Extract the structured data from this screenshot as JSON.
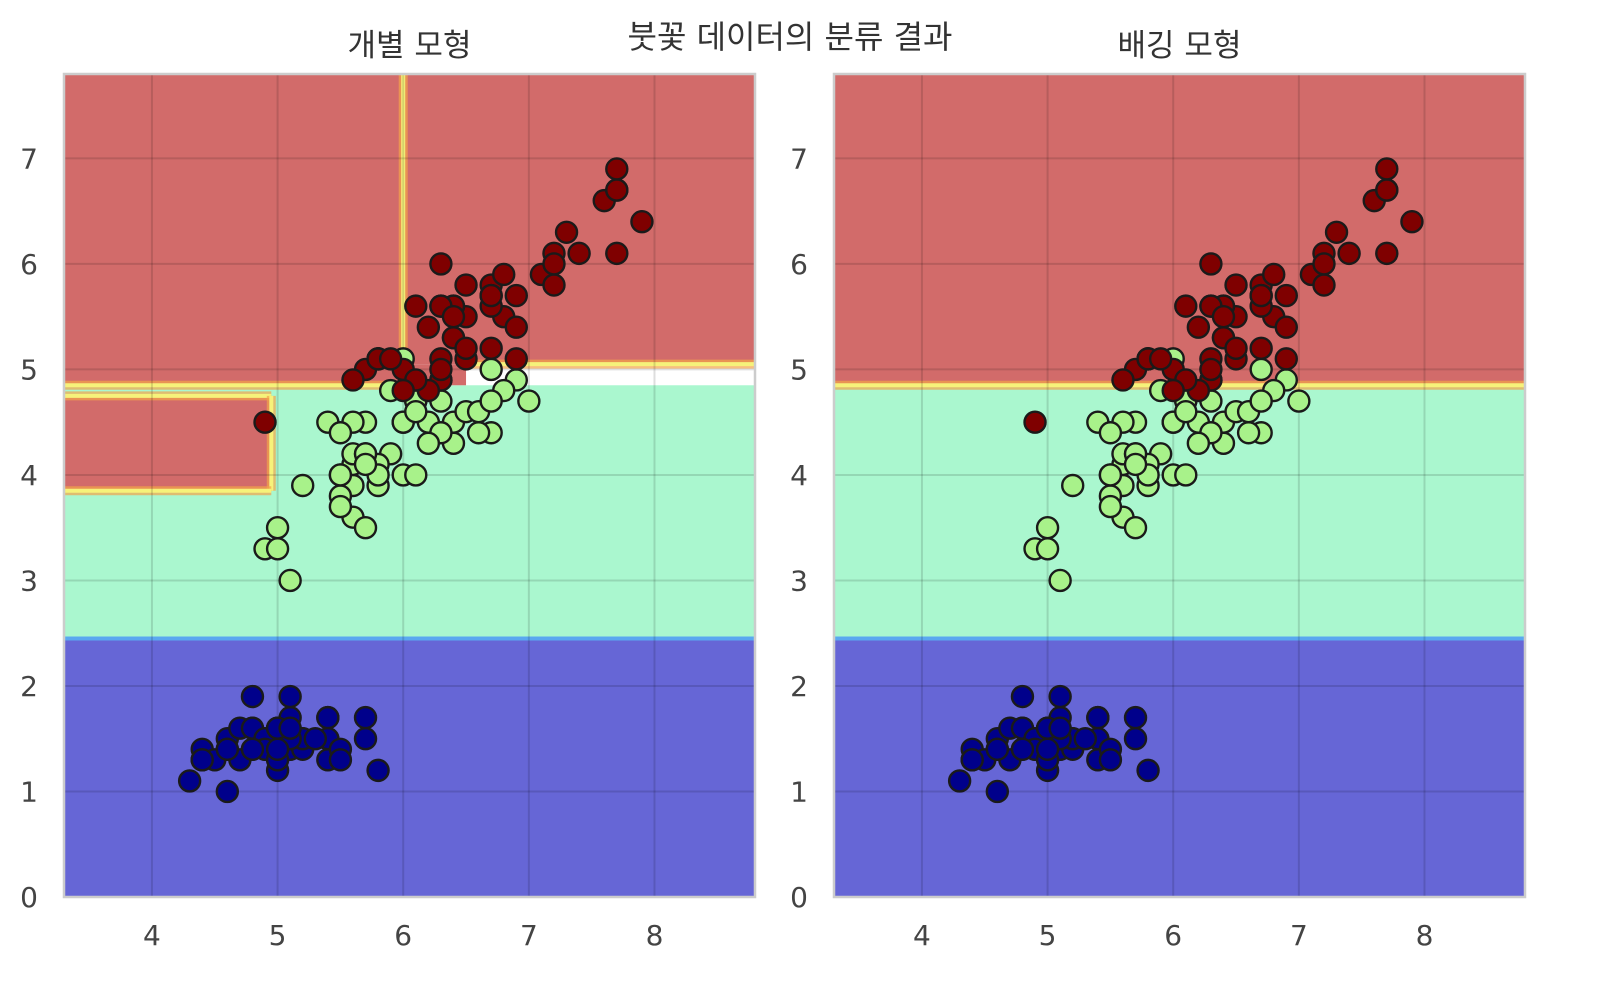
{
  "figure": {
    "suptitle": "붓꽃 데이터의 분류 결과"
  },
  "chart_data": [
    {
      "type": "scatter",
      "title": "개별 모형",
      "xlim": [
        3.3,
        8.8
      ],
      "ylim": [
        0,
        7.8
      ],
      "xticks": [
        4,
        5,
        6,
        7,
        8
      ],
      "yticks": [
        0,
        1,
        2,
        3,
        4,
        5,
        6,
        7
      ],
      "grid": true,
      "class_colors": {
        "0": "#00008b",
        "1": "#a8f28a",
        "2": "#7f0000"
      },
      "region_colors": {
        "0": "#6666d6",
        "1": "#aaf7cf",
        "2": "#d26b6a"
      },
      "decision_regions": [
        {
          "class": 0,
          "x": [
            3.3,
            8.8
          ],
          "y": [
            0,
            2.45
          ]
        },
        {
          "class": 1,
          "x": [
            3.3,
            8.8
          ],
          "y": [
            2.45,
            4.85
          ]
        },
        {
          "class": 2,
          "x": [
            3.3,
            4.95
          ],
          "y": [
            3.85,
            4.75
          ]
        },
        {
          "class": 2,
          "x": [
            3.3,
            6.0
          ],
          "y": [
            4.85,
            7.8
          ]
        },
        {
          "class": 2,
          "x": [
            6.0,
            8.8
          ],
          "y": [
            5.05,
            7.8
          ]
        },
        {
          "class": 2,
          "x": [
            6.0,
            6.5
          ],
          "y": [
            4.85,
            5.05
          ]
        }
      ]
    },
    {
      "type": "scatter",
      "title": "배깅 모형",
      "xlim": [
        3.3,
        8.8
      ],
      "ylim": [
        0,
        7.8
      ],
      "xticks": [
        4,
        5,
        6,
        7,
        8
      ],
      "yticks": [
        0,
        1,
        2,
        3,
        4,
        5,
        6,
        7
      ],
      "grid": true,
      "class_colors": {
        "0": "#00008b",
        "1": "#a8f28a",
        "2": "#7f0000"
      },
      "region_colors": {
        "0": "#6666d6",
        "1": "#aaf7cf",
        "2": "#d26b6a"
      },
      "decision_regions": [
        {
          "class": 0,
          "x": [
            3.3,
            8.8
          ],
          "y": [
            0,
            2.45
          ]
        },
        {
          "class": 1,
          "x": [
            3.3,
            8.8
          ],
          "y": [
            2.45,
            4.85
          ]
        },
        {
          "class": 2,
          "x": [
            3.3,
            8.8
          ],
          "y": [
            4.85,
            7.8
          ]
        }
      ]
    }
  ],
  "points": [
    [
      5.1,
      1.4,
      0
    ],
    [
      4.9,
      1.4,
      0
    ],
    [
      4.7,
      1.3,
      0
    ],
    [
      4.6,
      1.5,
      0
    ],
    [
      5.0,
      1.4,
      0
    ],
    [
      5.4,
      1.7,
      0
    ],
    [
      4.6,
      1.4,
      0
    ],
    [
      5.0,
      1.5,
      0
    ],
    [
      4.4,
      1.4,
      0
    ],
    [
      4.9,
      1.5,
      0
    ],
    [
      5.4,
      1.5,
      0
    ],
    [
      4.8,
      1.6,
      0
    ],
    [
      4.8,
      1.4,
      0
    ],
    [
      4.3,
      1.1,
      0
    ],
    [
      5.8,
      1.2,
      0
    ],
    [
      5.7,
      1.5,
      0
    ],
    [
      5.4,
      1.3,
      0
    ],
    [
      5.1,
      1.4,
      0
    ],
    [
      5.7,
      1.7,
      0
    ],
    [
      5.1,
      1.5,
      0
    ],
    [
      5.4,
      1.7,
      0
    ],
    [
      5.1,
      1.5,
      0
    ],
    [
      4.6,
      1.0,
      0
    ],
    [
      5.1,
      1.7,
      0
    ],
    [
      4.8,
      1.9,
      0
    ],
    [
      5.0,
      1.6,
      0
    ],
    [
      5.0,
      1.6,
      0
    ],
    [
      5.2,
      1.5,
      0
    ],
    [
      5.2,
      1.4,
      0
    ],
    [
      4.7,
      1.6,
      0
    ],
    [
      4.8,
      1.6,
      0
    ],
    [
      5.4,
      1.5,
      0
    ],
    [
      5.2,
      1.5,
      0
    ],
    [
      5.5,
      1.4,
      0
    ],
    [
      4.9,
      1.5,
      0
    ],
    [
      5.0,
      1.2,
      0
    ],
    [
      5.5,
      1.3,
      0
    ],
    [
      4.9,
      1.4,
      0
    ],
    [
      4.4,
      1.3,
      0
    ],
    [
      5.1,
      1.5,
      0
    ],
    [
      5.0,
      1.3,
      0
    ],
    [
      4.5,
      1.3,
      0
    ],
    [
      4.4,
      1.3,
      0
    ],
    [
      5.0,
      1.6,
      0
    ],
    [
      5.1,
      1.9,
      0
    ],
    [
      4.8,
      1.4,
      0
    ],
    [
      5.1,
      1.6,
      0
    ],
    [
      4.6,
      1.4,
      0
    ],
    [
      5.3,
      1.5,
      0
    ],
    [
      5.0,
      1.4,
      0
    ],
    [
      7.0,
      4.7,
      1
    ],
    [
      6.4,
      4.5,
      1
    ],
    [
      6.9,
      4.9,
      1
    ],
    [
      5.5,
      4.0,
      1
    ],
    [
      6.5,
      4.6,
      1
    ],
    [
      5.7,
      4.5,
      1
    ],
    [
      6.3,
      4.7,
      1
    ],
    [
      4.9,
      3.3,
      1
    ],
    [
      6.6,
      4.6,
      1
    ],
    [
      5.2,
      3.9,
      1
    ],
    [
      5.0,
      3.5,
      1
    ],
    [
      5.9,
      4.2,
      1
    ],
    [
      6.0,
      4.0,
      1
    ],
    [
      6.1,
      4.7,
      1
    ],
    [
      5.6,
      3.6,
      1
    ],
    [
      6.7,
      4.4,
      1
    ],
    [
      5.6,
      4.5,
      1
    ],
    [
      5.8,
      4.1,
      1
    ],
    [
      6.2,
      4.5,
      1
    ],
    [
      5.6,
      3.9,
      1
    ],
    [
      5.9,
      4.8,
      1
    ],
    [
      6.1,
      4.0,
      1
    ],
    [
      6.3,
      4.9,
      1
    ],
    [
      6.1,
      4.7,
      1
    ],
    [
      6.4,
      4.3,
      1
    ],
    [
      6.6,
      4.4,
      1
    ],
    [
      6.8,
      4.8,
      1
    ],
    [
      6.7,
      5.0,
      1
    ],
    [
      6.0,
      4.5,
      1
    ],
    [
      5.7,
      3.5,
      1
    ],
    [
      5.5,
      3.8,
      1
    ],
    [
      5.5,
      3.7,
      1
    ],
    [
      5.8,
      3.9,
      1
    ],
    [
      6.0,
      5.1,
      1
    ],
    [
      5.4,
      4.5,
      1
    ],
    [
      6.0,
      4.5,
      1
    ],
    [
      6.7,
      4.7,
      1
    ],
    [
      6.3,
      4.4,
      1
    ],
    [
      5.6,
      4.1,
      1
    ],
    [
      5.5,
      4.0,
      1
    ],
    [
      5.5,
      4.4,
      1
    ],
    [
      6.1,
      4.6,
      1
    ],
    [
      5.8,
      4.0,
      1
    ],
    [
      5.0,
      3.3,
      1
    ],
    [
      5.6,
      4.2,
      1
    ],
    [
      5.7,
      4.2,
      1
    ],
    [
      5.7,
      4.2,
      1
    ],
    [
      6.2,
      4.3,
      1
    ],
    [
      5.1,
      3.0,
      1
    ],
    [
      5.7,
      4.1,
      1
    ],
    [
      6.3,
      6.0,
      2
    ],
    [
      5.8,
      5.1,
      2
    ],
    [
      7.1,
      5.9,
      2
    ],
    [
      6.3,
      5.6,
      2
    ],
    [
      6.5,
      5.8,
      2
    ],
    [
      7.6,
      6.6,
      2
    ],
    [
      4.9,
      4.5,
      2
    ],
    [
      7.3,
      6.3,
      2
    ],
    [
      6.7,
      5.8,
      2
    ],
    [
      7.2,
      6.1,
      2
    ],
    [
      6.5,
      5.1,
      2
    ],
    [
      6.4,
      5.3,
      2
    ],
    [
      6.8,
      5.5,
      2
    ],
    [
      5.7,
      5.0,
      2
    ],
    [
      5.8,
      5.1,
      2
    ],
    [
      6.4,
      5.3,
      2
    ],
    [
      6.5,
      5.5,
      2
    ],
    [
      7.7,
      6.7,
      2
    ],
    [
      7.7,
      6.9,
      2
    ],
    [
      6.0,
      5.0,
      2
    ],
    [
      6.9,
      5.7,
      2
    ],
    [
      5.6,
      4.9,
      2
    ],
    [
      7.7,
      6.7,
      2
    ],
    [
      6.3,
      4.9,
      2
    ],
    [
      6.7,
      5.7,
      2
    ],
    [
      7.2,
      6.0,
      2
    ],
    [
      6.2,
      4.8,
      2
    ],
    [
      6.1,
      4.9,
      2
    ],
    [
      6.4,
      5.6,
      2
    ],
    [
      7.2,
      5.8,
      2
    ],
    [
      7.4,
      6.1,
      2
    ],
    [
      7.9,
      6.4,
      2
    ],
    [
      6.4,
      5.6,
      2
    ],
    [
      6.3,
      5.1,
      2
    ],
    [
      6.1,
      5.6,
      2
    ],
    [
      7.7,
      6.1,
      2
    ],
    [
      6.3,
      5.6,
      2
    ],
    [
      6.4,
      5.5,
      2
    ],
    [
      6.0,
      4.8,
      2
    ],
    [
      6.9,
      5.4,
      2
    ],
    [
      6.7,
      5.6,
      2
    ],
    [
      6.9,
      5.1,
      2
    ],
    [
      5.8,
      5.1,
      2
    ],
    [
      6.8,
      5.9,
      2
    ],
    [
      6.7,
      5.7,
      2
    ],
    [
      6.7,
      5.2,
      2
    ],
    [
      6.3,
      5.0,
      2
    ],
    [
      6.5,
      5.2,
      2
    ],
    [
      6.2,
      5.4,
      2
    ],
    [
      5.9,
      5.1,
      2
    ]
  ]
}
